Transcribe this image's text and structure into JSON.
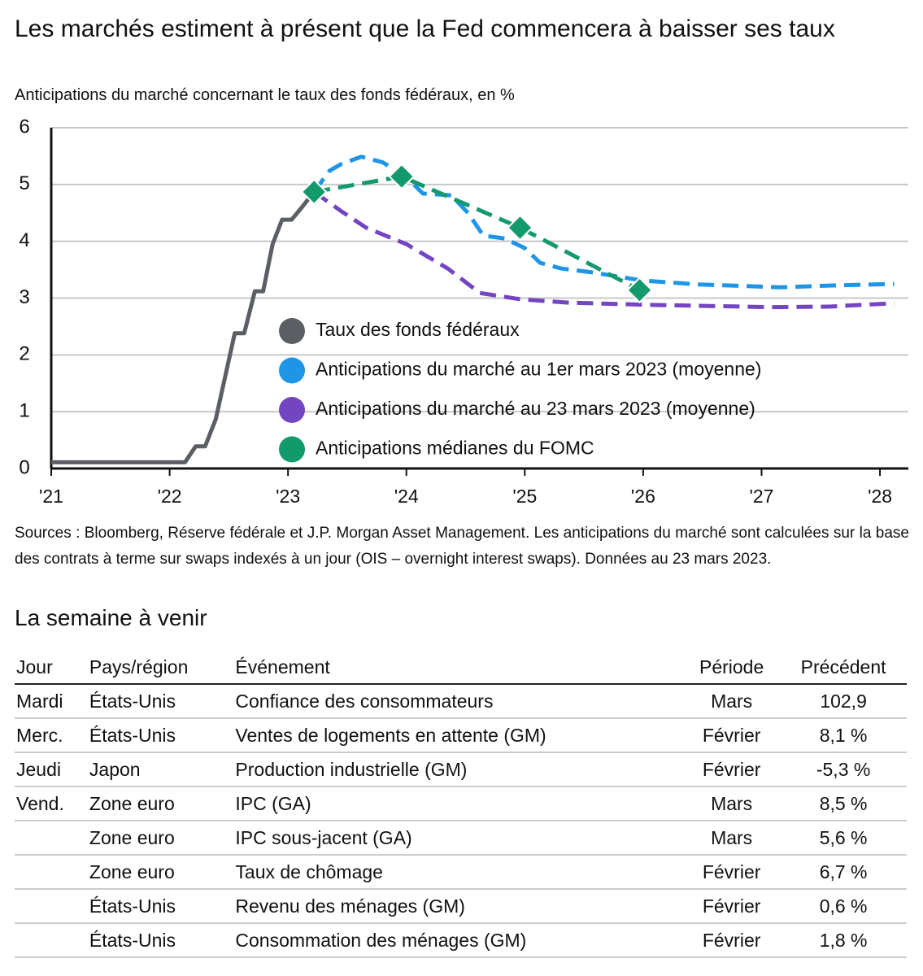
{
  "chart_data": {
    "type": "line",
    "title": "Les marchés estiment à présent que la Fed commencera à baisser ses taux",
    "subtitle": "Anticipations du marché concernant le taux des fonds fédéraux, en %",
    "xlim": [
      2021,
      2028.24
    ],
    "xticks": [
      {
        "value": 2021,
        "label": "'21"
      },
      {
        "value": 2022,
        "label": "'22"
      },
      {
        "value": 2023,
        "label": "'23"
      },
      {
        "value": 2024,
        "label": "'24"
      },
      {
        "value": 2025,
        "label": "'25"
      },
      {
        "value": 2026,
        "label": "'26"
      },
      {
        "value": 2027,
        "label": "'27"
      },
      {
        "value": 2028,
        "label": "'28"
      }
    ],
    "ylim": [
      0,
      6
    ],
    "yticks": [
      0,
      1,
      2,
      3,
      4,
      5,
      6
    ],
    "grid": true,
    "series": [
      {
        "name": "Taux des fonds fédéraux",
        "color": "#5b5e62",
        "dashed": false,
        "x": [
          2021.0,
          2022.13,
          2022.22,
          2022.3,
          2022.39,
          2022.55,
          2022.63,
          2022.72,
          2022.79,
          2022.87,
          2022.95,
          2023.03,
          2023.11,
          2023.22
        ],
        "values": [
          0.11,
          0.11,
          0.39,
          0.39,
          0.87,
          2.38,
          2.38,
          3.12,
          3.12,
          3.95,
          4.38,
          4.38,
          4.58,
          4.87
        ]
      },
      {
        "name": "Anticipations du marché au 1er mars 2023 (moyenne)",
        "color": "#1f95e8",
        "dashed": true,
        "x": [
          2023.22,
          2023.35,
          2023.45,
          2023.62,
          2023.8,
          2024.0,
          2024.14,
          2024.38,
          2024.52,
          2024.65,
          2024.83,
          2025.0,
          2025.13,
          2025.31,
          2025.58,
          2025.99,
          2026.47,
          2027.16,
          2027.57,
          2028.12
        ],
        "values": [
          4.87,
          5.24,
          5.36,
          5.49,
          5.39,
          5.13,
          4.84,
          4.81,
          4.5,
          4.1,
          4.05,
          3.88,
          3.62,
          3.52,
          3.45,
          3.31,
          3.24,
          3.19,
          3.22,
          3.25
        ]
      },
      {
        "name": "Anticipations du marché au 23 mars 2023 (moyenne)",
        "color": "#7445c0",
        "dashed": true,
        "x": [
          2023.22,
          2023.45,
          2023.66,
          2024.0,
          2024.35,
          2024.62,
          2024.96,
          2025.37,
          2026.06,
          2027.09,
          2027.57,
          2028.12
        ],
        "values": [
          4.87,
          4.53,
          4.24,
          3.95,
          3.52,
          3.09,
          2.98,
          2.92,
          2.88,
          2.84,
          2.85,
          2.91
        ]
      },
      {
        "name": "Anticipations médianes du FOMC",
        "color": "#139a6b",
        "dashed": true,
        "marker": "diamond",
        "x": [
          2023.22,
          2023.96,
          2024.96,
          2025.97
        ],
        "values": [
          4.87,
          5.14,
          4.24,
          3.14
        ]
      }
    ]
  },
  "sources": "Sources : Bloomberg, Réserve fédérale et J.P. Morgan Asset Management. Les anticipations du marché sont calculées sur la base des contrats à terme sur swaps indexés à un jour (OIS – overnight interest swaps). Données au 23 mars 2023.",
  "table": {
    "title": "La semaine à venir",
    "columns": [
      "Jour",
      "Pays/région",
      "Événement",
      "Période",
      "Précédent"
    ],
    "rows": [
      [
        "Mardi",
        "États-Unis",
        "Confiance des consommateurs",
        "Mars",
        "102,9"
      ],
      [
        "Merc.",
        "États-Unis",
        "Ventes de logements en attente (GM)",
        "Février",
        "8,1 %"
      ],
      [
        "Jeudi",
        "Japon",
        "Production industrielle (GM)",
        "Février",
        "-5,3 %"
      ],
      [
        "Vend.",
        "Zone euro",
        "IPC (GA)",
        "Mars",
        "8,5 %"
      ],
      [
        null,
        "Zone euro",
        "IPC sous-jacent (GA)",
        "Mars",
        "5,6 %"
      ],
      [
        null,
        "Zone euro",
        "Taux de chômage",
        "Février",
        "6,7 %"
      ],
      [
        null,
        "États-Unis",
        "Revenu des ménages (GM)",
        "Février",
        "0,6 %"
      ],
      [
        null,
        "États-Unis",
        "Consommation des ménages (GM)",
        "Février",
        "1,8 %"
      ]
    ]
  }
}
